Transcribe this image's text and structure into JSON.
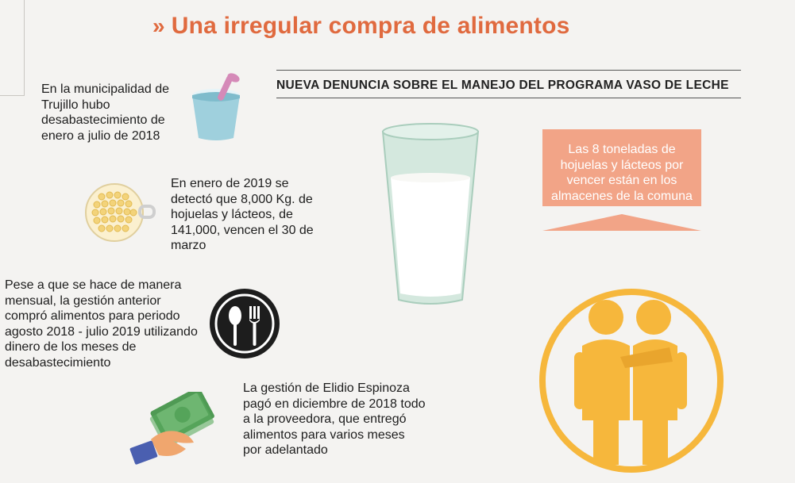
{
  "header": {
    "title": "Una irregular compra de alimentos",
    "subtitle": "NUEVA DENUNCIA SOBRE EL MANEJO DEL PROGRAMA VASO DE LECHE"
  },
  "items": [
    {
      "text": "En la municipalidad de Trujillo hubo desabastecimiento de enero a julio de 2018",
      "icon": "yogurt-cup-icon"
    },
    {
      "text": "En enero de 2019 se detectó que 8,000 Kg. de hojuelas y lácteos, de 141,000, vencen el 30 de marzo",
      "icon": "cereal-bowl-icon"
    },
    {
      "text": "Pese a que se hace de manera mensual, la gestión anterior compró alimentos para periodo agosto 2018 - julio 2019 utilizando dinero de los meses de desabastecimiento",
      "icon": "spoon-fork-icon"
    },
    {
      "text": "La gestión de Elidio Espinoza pagó en diciembre de 2018 todo a la proveedora, que entregó alimentos para varios meses por adelantado",
      "icon": "money-hand-icon"
    }
  ],
  "callout": {
    "text": "Las 8 toneladas de hojuelas y lácteos por vencer están en los almacenes de la comuna"
  },
  "illustrations": {
    "glass": "milk-glass-icon",
    "people": "two-people-icon"
  },
  "colors": {
    "title": "#e06a3f",
    "callout": "#f2a487",
    "people": "#f6b73c",
    "glass": "#c9e2d6",
    "yogurt": "#9fd0dd"
  }
}
